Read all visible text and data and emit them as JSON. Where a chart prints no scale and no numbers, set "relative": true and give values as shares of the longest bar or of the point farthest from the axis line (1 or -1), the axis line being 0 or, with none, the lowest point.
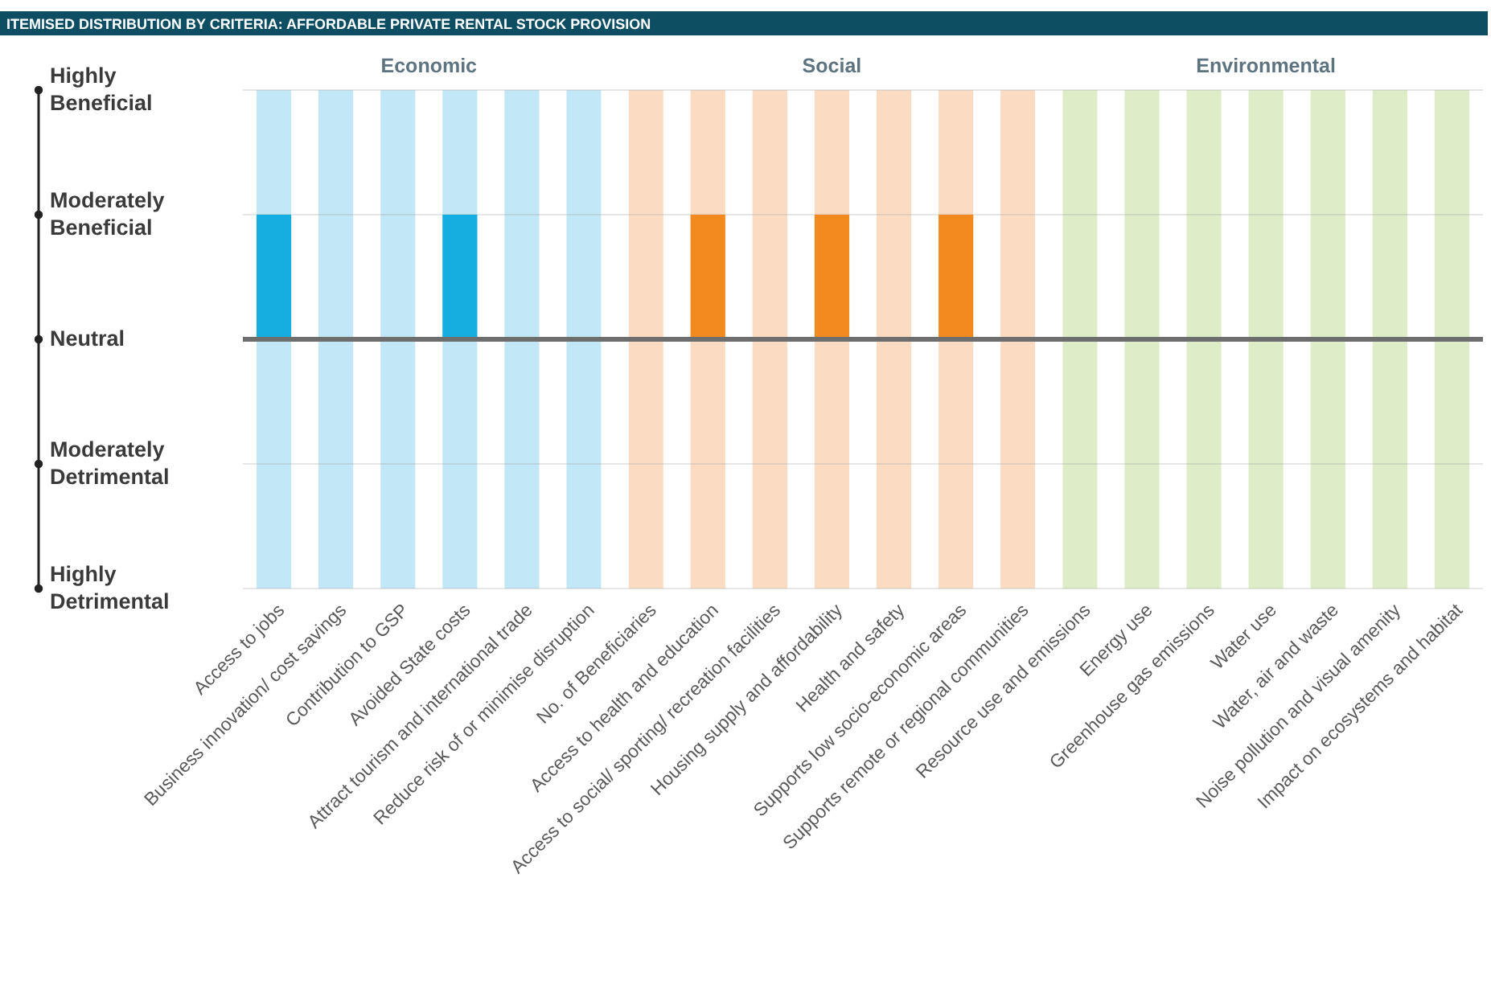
{
  "chart_data": {
    "type": "bar",
    "title": "ITEMISED DISTRIBUTION BY CRITERIA: AFFORDABLE PRIVATE RENTAL STOCK PROVISION",
    "categories": [
      "Access to jobs",
      "Business innovation/ cost savings",
      "Contribution to GSP",
      "Avoided State costs",
      "Attract tourism and international trade",
      "Reduce risk of or minimise disruption",
      "No. of Beneficiaries",
      "Access to health and education",
      "Access to social/ sporting/ recreation facilities",
      "Housing supply and affordability",
      "Health and safety",
      "Supports low socio-economic areas",
      "Supports remote or regional communities",
      "Resource use and emissions",
      "Energy use",
      "Greenhouse gas emissions",
      "Water use",
      "Water, air and waste",
      "Noise pollution and visual amenity",
      "Impact on ecosystems and habitat"
    ],
    "values": [
      1,
      0,
      0,
      1,
      0,
      0,
      0,
      1,
      0,
      1,
      0,
      1,
      0,
      0,
      0,
      0,
      0,
      0,
      0,
      0
    ],
    "colors": [
      "#16ade1",
      "#16ade1",
      "#16ade1",
      "#16ade1",
      "#16ade1",
      "#16ade1",
      "#f38a1f",
      "#f38a1f",
      "#f38a1f",
      "#f38a1f",
      "#f38a1f",
      "#f38a1f",
      "#f38a1f",
      "#8cc152",
      "#8cc152",
      "#8cc152",
      "#8cc152",
      "#8cc152",
      "#8cc152",
      "#8cc152"
    ],
    "relative": true,
    "grid": "y",
    "annotations": [
      "Highly Beneficial",
      "Moderately Beneficial",
      "Neutral",
      "Moderately Detrimental",
      "Highly Detrimental"
    ],
    "bands": [
      {
        "axis": "x",
        "from": "Access to jobs",
        "to": "Reduce risk of or minimise disruption",
        "label": "Economic",
        "color": "#c2e7f6"
      },
      {
        "axis": "x",
        "from": "No. of Beneficiaries",
        "to": "Supports remote or regional communities",
        "label": "Social",
        "color": "#fbdcc3"
      },
      {
        "axis": "x",
        "from": "Resource use and emissions",
        "to": "Impact on ecosystems and habitat",
        "label": "Environmental",
        "color": "#deecc8"
      }
    ]
  }
}
